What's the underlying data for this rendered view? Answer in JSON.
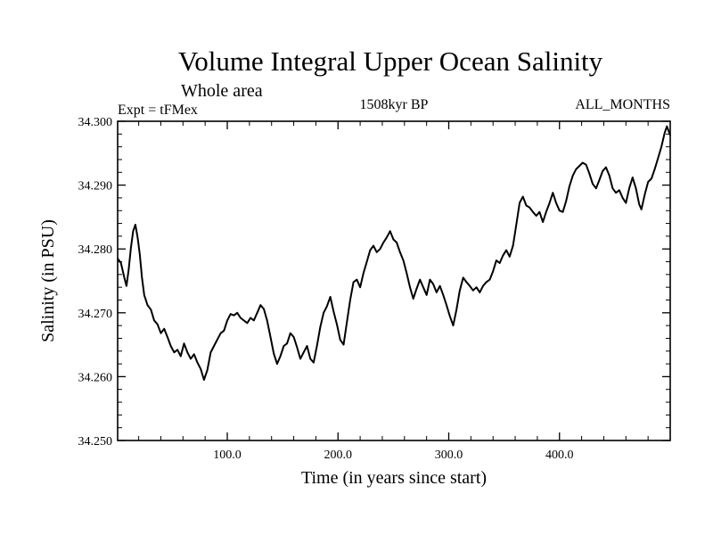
{
  "chart_data": {
    "type": "line",
    "title": "Volume Integral Upper Ocean Salinity",
    "subtitle": "Whole area",
    "experiment_label": "Expt = tFMex",
    "period_label": "1508kyr BP",
    "months_label": "ALL_MONTHS",
    "xlabel": "Time (in years since start)",
    "ylabel": "Salinity (in PSU)",
    "xlim": [
      1,
      500
    ],
    "ylim": [
      34.25,
      34.3
    ],
    "xticks": [
      100,
      200,
      300,
      400
    ],
    "xtick_labels": [
      "100.0",
      "200.0",
      "300.0",
      "400.0"
    ],
    "yticks": [
      34.25,
      34.26,
      34.27,
      34.28,
      34.29,
      34.3
    ],
    "ytick_labels": [
      "34.250",
      "34.260",
      "34.270",
      "34.280",
      "34.290",
      "34.300"
    ],
    "series": [
      {
        "name": "Salinity",
        "color": "#000000",
        "points": [
          [
            1,
            34.2785
          ],
          [
            4,
            34.2778
          ],
          [
            7,
            34.2755
          ],
          [
            9,
            34.2742
          ],
          [
            11,
            34.2768
          ],
          [
            13,
            34.2802
          ],
          [
            15,
            34.2828
          ],
          [
            17,
            34.2838
          ],
          [
            19,
            34.2818
          ],
          [
            21,
            34.2792
          ],
          [
            23,
            34.2755
          ],
          [
            25,
            34.2728
          ],
          [
            28,
            34.2712
          ],
          [
            31,
            34.2705
          ],
          [
            34,
            34.2688
          ],
          [
            37,
            34.2682
          ],
          [
            40,
            34.2668
          ],
          [
            43,
            34.2675
          ],
          [
            46,
            34.2662
          ],
          [
            49,
            34.2648
          ],
          [
            52,
            34.2638
          ],
          [
            55,
            34.2642
          ],
          [
            58,
            34.2632
          ],
          [
            61,
            34.2652
          ],
          [
            64,
            34.2638
          ],
          [
            67,
            34.2628
          ],
          [
            70,
            34.2635
          ],
          [
            73,
            34.2622
          ],
          [
            76,
            34.2612
          ],
          [
            79,
            34.2595
          ],
          [
            82,
            34.261
          ],
          [
            85,
            34.2638
          ],
          [
            88,
            34.2648
          ],
          [
            91,
            34.2658
          ],
          [
            94,
            34.2668
          ],
          [
            97,
            34.2672
          ],
          [
            100,
            34.2688
          ],
          [
            103,
            34.2698
          ],
          [
            106,
            34.2696
          ],
          [
            109,
            34.27
          ],
          [
            112,
            34.2692
          ],
          [
            115,
            34.2688
          ],
          [
            118,
            34.2684
          ],
          [
            121,
            34.2692
          ],
          [
            124,
            34.2688
          ],
          [
            127,
            34.27
          ],
          [
            130,
            34.2712
          ],
          [
            133,
            34.2706
          ],
          [
            136,
            34.2688
          ],
          [
            139,
            34.2662
          ],
          [
            142,
            34.2636
          ],
          [
            145,
            34.262
          ],
          [
            148,
            34.2632
          ],
          [
            151,
            34.2648
          ],
          [
            154,
            34.2652
          ],
          [
            157,
            34.2668
          ],
          [
            160,
            34.2662
          ],
          [
            163,
            34.2646
          ],
          [
            166,
            34.2628
          ],
          [
            169,
            34.2638
          ],
          [
            172,
            34.2648
          ],
          [
            175,
            34.2628
          ],
          [
            178,
            34.2622
          ],
          [
            181,
            34.2648
          ],
          [
            184,
            34.2678
          ],
          [
            187,
            34.27
          ],
          [
            190,
            34.271
          ],
          [
            193,
            34.2725
          ],
          [
            196,
            34.2702
          ],
          [
            199,
            34.2682
          ],
          [
            202,
            34.2658
          ],
          [
            205,
            34.265
          ],
          [
            208,
            34.2685
          ],
          [
            211,
            34.272
          ],
          [
            214,
            34.2748
          ],
          [
            217,
            34.2752
          ],
          [
            220,
            34.274
          ],
          [
            223,
            34.2762
          ],
          [
            226,
            34.278
          ],
          [
            229,
            34.2798
          ],
          [
            232,
            34.2805
          ],
          [
            235,
            34.2795
          ],
          [
            238,
            34.28
          ],
          [
            241,
            34.281
          ],
          [
            244,
            34.2818
          ],
          [
            247,
            34.2828
          ],
          [
            250,
            34.2815
          ],
          [
            253,
            34.281
          ],
          [
            256,
            34.2795
          ],
          [
            259,
            34.2782
          ],
          [
            262,
            34.2762
          ],
          [
            265,
            34.274
          ],
          [
            268,
            34.2722
          ],
          [
            271,
            34.2738
          ],
          [
            274,
            34.2752
          ],
          [
            277,
            34.274
          ],
          [
            280,
            34.2728
          ],
          [
            283,
            34.2752
          ],
          [
            286,
            34.2745
          ],
          [
            289,
            34.2732
          ],
          [
            292,
            34.2742
          ],
          [
            295,
            34.2728
          ],
          [
            298,
            34.2712
          ],
          [
            301,
            34.2695
          ],
          [
            304,
            34.268
          ],
          [
            307,
            34.2705
          ],
          [
            310,
            34.2735
          ],
          [
            313,
            34.2755
          ],
          [
            316,
            34.2748
          ],
          [
            319,
            34.2742
          ],
          [
            322,
            34.2735
          ],
          [
            325,
            34.274
          ],
          [
            328,
            34.2732
          ],
          [
            331,
            34.2742
          ],
          [
            334,
            34.2748
          ],
          [
            337,
            34.2752
          ],
          [
            340,
            34.2765
          ],
          [
            343,
            34.2782
          ],
          [
            346,
            34.2778
          ],
          [
            349,
            34.279
          ],
          [
            352,
            34.2798
          ],
          [
            355,
            34.2788
          ],
          [
            358,
            34.2805
          ],
          [
            361,
            34.2838
          ],
          [
            364,
            34.2872
          ],
          [
            367,
            34.2882
          ],
          [
            370,
            34.2868
          ],
          [
            373,
            34.2865
          ],
          [
            376,
            34.2858
          ],
          [
            379,
            34.2852
          ],
          [
            382,
            34.2858
          ],
          [
            385,
            34.2842
          ],
          [
            388,
            34.2858
          ],
          [
            391,
            34.2872
          ],
          [
            394,
            34.2888
          ],
          [
            397,
            34.2872
          ],
          [
            400,
            34.286
          ],
          [
            403,
            34.2858
          ],
          [
            406,
            34.2875
          ],
          [
            409,
            34.2898
          ],
          [
            412,
            34.2915
          ],
          [
            415,
            34.2925
          ],
          [
            418,
            34.293
          ],
          [
            421,
            34.2935
          ],
          [
            424,
            34.2932
          ],
          [
            427,
            34.2918
          ],
          [
            430,
            34.2902
          ],
          [
            433,
            34.2895
          ],
          [
            436,
            34.2908
          ],
          [
            439,
            34.2922
          ],
          [
            442,
            34.2928
          ],
          [
            445,
            34.2915
          ],
          [
            448,
            34.2895
          ],
          [
            451,
            34.2888
          ],
          [
            454,
            34.2892
          ],
          [
            457,
            34.288
          ],
          [
            460,
            34.2872
          ],
          [
            463,
            34.2895
          ],
          [
            466,
            34.2912
          ],
          [
            469,
            34.2895
          ],
          [
            472,
            34.287
          ],
          [
            474,
            34.2862
          ],
          [
            477,
            34.2885
          ],
          [
            480,
            34.2905
          ],
          [
            483,
            34.291
          ],
          [
            486,
            34.2925
          ],
          [
            489,
            34.2942
          ],
          [
            492,
            34.296
          ],
          [
            495,
            34.2982
          ],
          [
            497,
            34.2992
          ],
          [
            500,
            34.2978
          ]
        ]
      }
    ]
  }
}
